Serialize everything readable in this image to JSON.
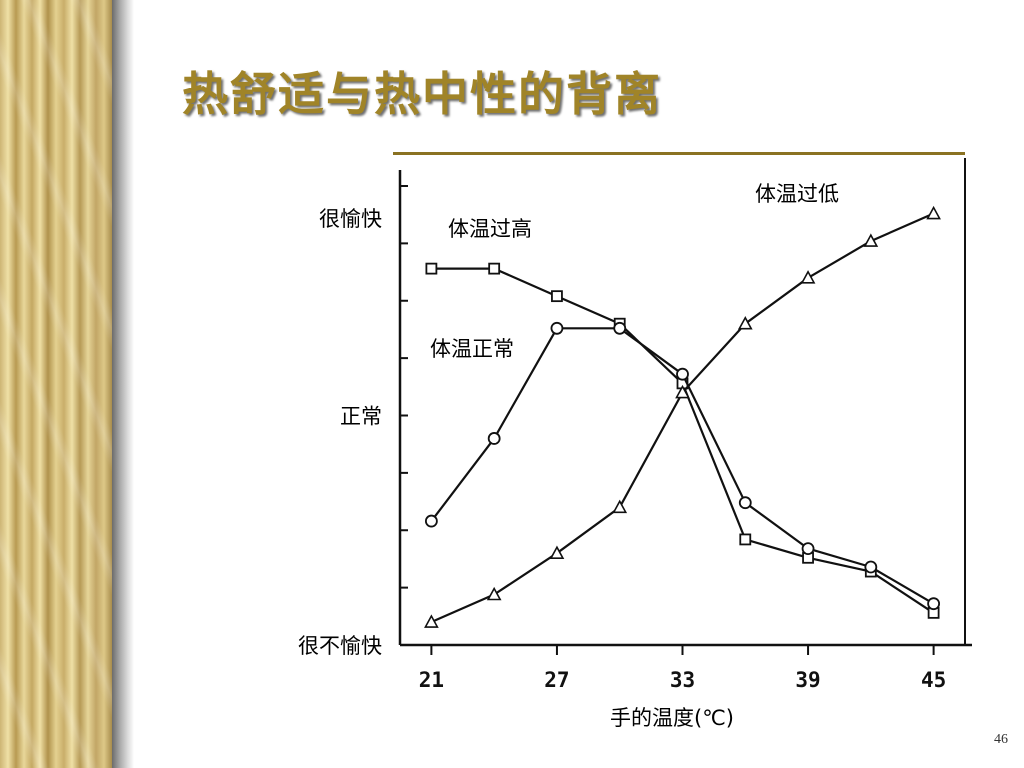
{
  "slide": {
    "title": "热舒适与热中性的背离",
    "page_number": "46"
  },
  "colors": {
    "title": "#a08428",
    "sidebar_gold": "#d9c37f",
    "line": "#111111"
  },
  "chart_data": {
    "type": "line",
    "title": "",
    "xlabel": "手的温度(℃)",
    "ylabel": "",
    "x_ticks": [
      21,
      27,
      33,
      39,
      45
    ],
    "xlim": [
      19.5,
      46.5
    ],
    "ylim": [
      0,
      100
    ],
    "y_labels": [
      {
        "text": "很愉快",
        "value": 93
      },
      {
        "text": "正常",
        "value": 50
      },
      {
        "text": "很不愉快",
        "value": 0
      }
    ],
    "grid": false,
    "series": [
      {
        "name": "体温过高",
        "marker": "square",
        "x": [
          21,
          24,
          27,
          30,
          33,
          36,
          39,
          42,
          45
        ],
        "y": [
          82,
          82,
          76,
          70,
          57,
          23,
          19,
          16,
          7
        ]
      },
      {
        "name": "体温正常",
        "marker": "circle",
        "x": [
          21,
          24,
          27,
          30,
          33,
          36,
          39,
          42,
          45
        ],
        "y": [
          27,
          45,
          69,
          69,
          59,
          31,
          21,
          17,
          9
        ]
      },
      {
        "name": "体温过低",
        "marker": "triangle",
        "x": [
          21,
          24,
          27,
          30,
          33,
          36,
          39,
          42,
          45
        ],
        "y": [
          5,
          11,
          20,
          30,
          55,
          70,
          80,
          88,
          94
        ]
      }
    ]
  }
}
